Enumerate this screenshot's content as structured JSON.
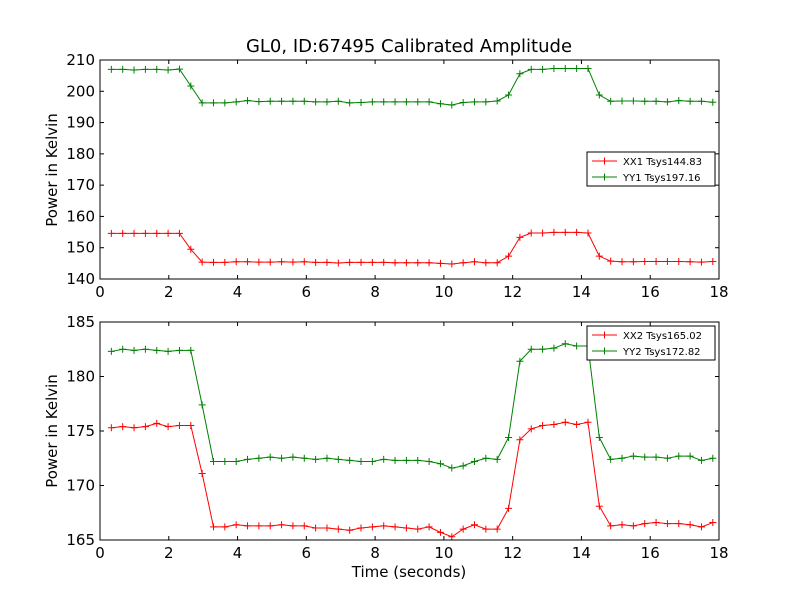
{
  "chart_data": [
    {
      "type": "line",
      "title": "GL0, ID:67495 Calibrated Amplitude",
      "xlabel": "",
      "ylabel": "Power in Kelvin",
      "xlim": [
        0,
        18
      ],
      "ylim": [
        140,
        210
      ],
      "xticks": [
        0,
        2,
        4,
        6,
        8,
        10,
        12,
        14,
        16,
        18
      ],
      "yticks": [
        140,
        150,
        160,
        170,
        180,
        190,
        200,
        210
      ],
      "legend": "center-right",
      "x": [
        0.33,
        0.66,
        0.99,
        1.32,
        1.65,
        1.98,
        2.31,
        2.64,
        2.97,
        3.3,
        3.63,
        3.96,
        4.29,
        4.62,
        4.95,
        5.28,
        5.61,
        5.94,
        6.27,
        6.6,
        6.93,
        7.26,
        7.59,
        7.92,
        8.25,
        8.58,
        8.91,
        9.24,
        9.57,
        9.9,
        10.23,
        10.56,
        10.89,
        11.22,
        11.55,
        11.88,
        12.21,
        12.54,
        12.87,
        13.2,
        13.53,
        13.86,
        14.19,
        14.52,
        14.85,
        15.18,
        15.51,
        15.84,
        16.17,
        16.5,
        16.83,
        17.16,
        17.49,
        17.82
      ],
      "series": [
        {
          "name": "XX1 Tsys144.83",
          "color": "#ff0000",
          "values": [
            154.6,
            154.6,
            154.6,
            154.6,
            154.6,
            154.6,
            154.6,
            149.5,
            145.4,
            145.3,
            145.3,
            145.5,
            145.5,
            145.4,
            145.4,
            145.5,
            145.4,
            145.5,
            145.3,
            145.3,
            145.1,
            145.3,
            145.3,
            145.3,
            145.3,
            145.2,
            145.2,
            145.2,
            145.2,
            145.0,
            144.8,
            145.2,
            145.5,
            145.2,
            145.2,
            147.3,
            153.3,
            154.7,
            154.7,
            154.9,
            154.9,
            154.9,
            154.7,
            147.3,
            145.7,
            145.5,
            145.5,
            145.6,
            145.6,
            145.6,
            145.6,
            145.5,
            145.4,
            145.6
          ]
        },
        {
          "name": "YY1 Tsys197.16",
          "color": "#008000",
          "values": [
            207.0,
            207.0,
            206.8,
            207.0,
            207.0,
            206.8,
            207.1,
            201.7,
            196.3,
            196.3,
            196.3,
            196.6,
            197.0,
            196.7,
            196.8,
            196.8,
            196.8,
            196.8,
            196.6,
            196.6,
            196.8,
            196.3,
            196.4,
            196.6,
            196.6,
            196.6,
            196.6,
            196.6,
            196.6,
            196.0,
            195.6,
            196.4,
            196.6,
            196.6,
            196.9,
            198.8,
            205.6,
            207.0,
            207.0,
            207.3,
            207.3,
            207.3,
            207.3,
            198.8,
            196.8,
            196.9,
            196.9,
            196.8,
            196.8,
            196.6,
            197.0,
            196.8,
            196.8,
            196.5
          ]
        }
      ]
    },
    {
      "type": "line",
      "title": "",
      "xlabel": "Time (seconds)",
      "ylabel": "Power in Kelvin",
      "xlim": [
        0,
        18
      ],
      "ylim": [
        165,
        185
      ],
      "xticks": [
        0,
        2,
        4,
        6,
        8,
        10,
        12,
        14,
        16,
        18
      ],
      "yticks": [
        165,
        170,
        175,
        180,
        185
      ],
      "legend": "top-right",
      "x": [
        0.33,
        0.66,
        0.99,
        1.32,
        1.65,
        1.98,
        2.31,
        2.64,
        2.97,
        3.3,
        3.63,
        3.96,
        4.29,
        4.62,
        4.95,
        5.28,
        5.61,
        5.94,
        6.27,
        6.6,
        6.93,
        7.26,
        7.59,
        7.92,
        8.25,
        8.58,
        8.91,
        9.24,
        9.57,
        9.9,
        10.23,
        10.56,
        10.89,
        11.22,
        11.55,
        11.88,
        12.21,
        12.54,
        12.87,
        13.2,
        13.53,
        13.86,
        14.19,
        14.52,
        14.85,
        15.18,
        15.51,
        15.84,
        16.17,
        16.5,
        16.83,
        17.16,
        17.49,
        17.82
      ],
      "series": [
        {
          "name": "XX2 Tsys165.02",
          "color": "#ff0000",
          "values": [
            175.3,
            175.4,
            175.3,
            175.4,
            175.7,
            175.4,
            175.5,
            175.5,
            171.1,
            166.2,
            166.2,
            166.4,
            166.3,
            166.3,
            166.3,
            166.4,
            166.3,
            166.3,
            166.1,
            166.1,
            166.0,
            165.9,
            166.1,
            166.2,
            166.3,
            166.2,
            166.1,
            166.0,
            166.2,
            165.7,
            165.3,
            166.0,
            166.4,
            166.0,
            166.0,
            167.9,
            174.2,
            175.2,
            175.5,
            175.6,
            175.8,
            175.6,
            175.8,
            168.1,
            166.3,
            166.4,
            166.3,
            166.5,
            166.6,
            166.5,
            166.5,
            166.4,
            166.2,
            166.6
          ]
        },
        {
          "name": "YY2 Tsys172.82",
          "color": "#008000",
          "values": [
            182.3,
            182.5,
            182.4,
            182.5,
            182.4,
            182.3,
            182.4,
            182.4,
            177.4,
            172.2,
            172.2,
            172.2,
            172.4,
            172.5,
            172.6,
            172.5,
            172.6,
            172.5,
            172.4,
            172.5,
            172.4,
            172.3,
            172.2,
            172.2,
            172.4,
            172.3,
            172.3,
            172.3,
            172.2,
            172.0,
            171.6,
            171.8,
            172.2,
            172.5,
            172.4,
            174.4,
            181.4,
            182.5,
            182.5,
            182.6,
            183.0,
            182.8,
            182.8,
            174.4,
            172.4,
            172.5,
            172.7,
            172.6,
            172.6,
            172.5,
            172.7,
            172.7,
            172.3,
            172.5
          ]
        }
      ]
    }
  ]
}
